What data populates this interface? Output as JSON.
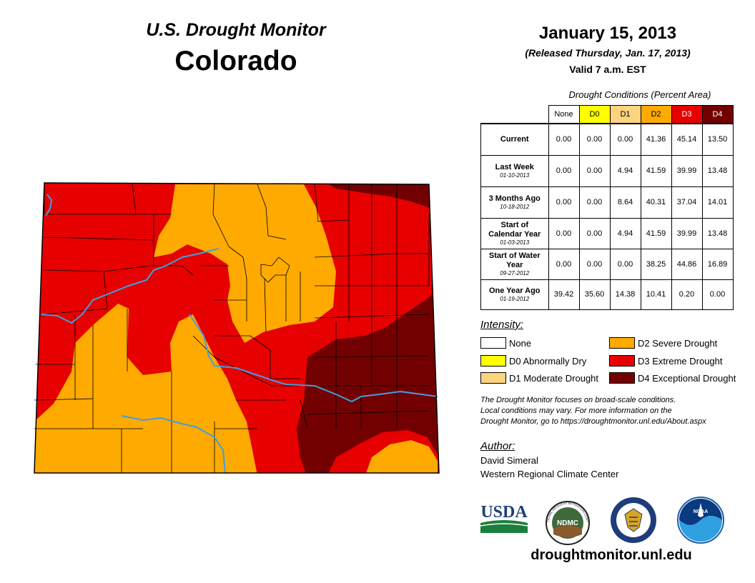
{
  "header": {
    "subtitle": "U.S. Drought Monitor",
    "state": "Colorado",
    "date": "January 15, 2013",
    "released": "(Released Thursday, Jan. 17, 2013)",
    "valid": "Valid 7 a.m. EST"
  },
  "colors": {
    "none": "#ffffff",
    "d0": "#ffff00",
    "d1": "#fcd37f",
    "d2": "#ffaa00",
    "d3": "#e60000",
    "d4": "#730000",
    "river": "#3ea0e0"
  },
  "table": {
    "caption": "Drought Conditions (Percent Area)",
    "columns": [
      "None",
      "D0",
      "D1",
      "D2",
      "D3",
      "D4"
    ],
    "rows": [
      {
        "label": "Current",
        "date": "",
        "values": [
          "0.00",
          "0.00",
          "0.00",
          "41.36",
          "45.14",
          "13.50"
        ]
      },
      {
        "label": "Last Week",
        "date": "01-10-2013",
        "values": [
          "0.00",
          "0.00",
          "4.94",
          "41.59",
          "39.99",
          "13.48"
        ]
      },
      {
        "label": "3 Months Ago",
        "date": "10-18-2012",
        "values": [
          "0.00",
          "0.00",
          "8.64",
          "40.31",
          "37.04",
          "14.01"
        ]
      },
      {
        "label": "Start of Calendar Year",
        "date": "01-03-2013",
        "values": [
          "0.00",
          "0.00",
          "4.94",
          "41.59",
          "39.99",
          "13.48"
        ]
      },
      {
        "label": "Start of Water Year",
        "date": "09-27-2012",
        "values": [
          "0.00",
          "0.00",
          "0.00",
          "38.25",
          "44.86",
          "16.89"
        ]
      },
      {
        "label": "One Year Ago",
        "date": "01-19-2012",
        "values": [
          "39.42",
          "35.60",
          "14.38",
          "10.41",
          "0.20",
          "0.00"
        ]
      }
    ]
  },
  "legend": {
    "title": "Intensity:",
    "items": [
      {
        "key": "none",
        "label": "None"
      },
      {
        "key": "d0",
        "label": "D0 Abnormally Dry"
      },
      {
        "key": "d1",
        "label": "D1 Moderate Drought"
      },
      {
        "key": "d2",
        "label": "D2 Severe Drought"
      },
      {
        "key": "d3",
        "label": "D3 Extreme Drought"
      },
      {
        "key": "d4",
        "label": "D4 Exceptional Drought"
      }
    ]
  },
  "disclaimer": [
    "The Drought Monitor focuses on broad-scale conditions.",
    "Local conditions may vary. For more information on the",
    "Drought Monitor, go to https://droughtmonitor.unl.edu/About.aspx"
  ],
  "author": {
    "title": "Author:",
    "name": "David Simeral",
    "org": "Western Regional Climate Center"
  },
  "logos": {
    "usda": "USDA",
    "ndmc": "NDMC",
    "ndmc_ring": "NATIONAL DROUGHT MITIGATION CENTER",
    "noaa": "NOAA"
  },
  "website": "droughtmonitor.unl.edu"
}
